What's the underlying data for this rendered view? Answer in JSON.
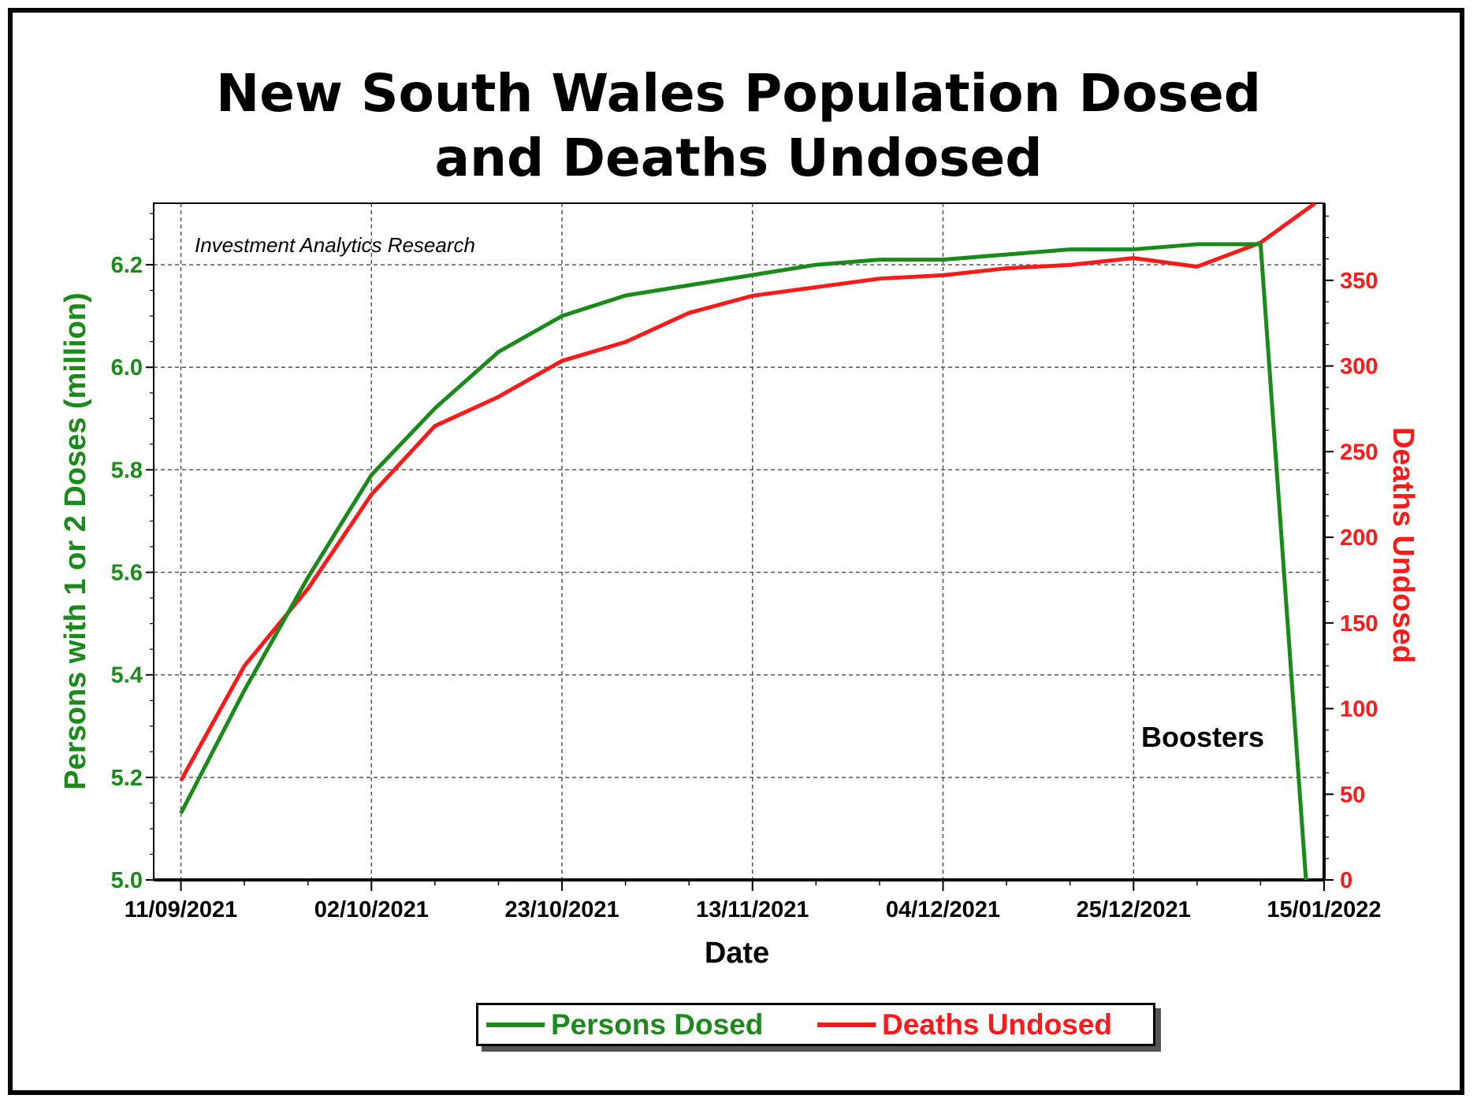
{
  "title_line1": "New South Wales Population Dosed",
  "title_line2": "and Deaths Undosed",
  "colors": {
    "dosed": "#1a8a1a",
    "deaths": "#ff1a1a",
    "grid": "#555555"
  },
  "chart_data": {
    "type": "line",
    "xlabel": "Date",
    "ylabel_left": "Persons with 1 or 2 Doses (million)",
    "ylabel_right": "Deaths Undosed",
    "annotation": "Investment Analytics Research",
    "boosters_label": "Boosters",
    "grid": true,
    "legend_position": "bottom",
    "x_ticks": [
      "11/09/2021",
      "02/10/2021",
      "23/10/2021",
      "13/11/2021",
      "04/12/2021",
      "25/12/2021",
      "15/01/2022"
    ],
    "xlim": [
      "08/09/2021",
      "15/01/2022"
    ],
    "ylim_left": [
      5.0,
      6.32
    ],
    "ylim_right": [
      0,
      395
    ],
    "y_ticks_left": [
      "5.0",
      "5.2",
      "5.4",
      "5.6",
      "5.8",
      "6.0",
      "6.2"
    ],
    "y_ticks_right": [
      "0",
      "50",
      "100",
      "150",
      "200",
      "250",
      "300",
      "350"
    ],
    "series": [
      {
        "name": "Persons Dosed",
        "axis": "left",
        "points": [
          [
            "11/09/2021",
            5.13
          ],
          [
            "18/09/2021",
            5.37
          ],
          [
            "25/09/2021",
            5.59
          ],
          [
            "02/10/2021",
            5.79
          ],
          [
            "09/10/2021",
            5.92
          ],
          [
            "16/10/2021",
            6.03
          ],
          [
            "23/10/2021",
            6.1
          ],
          [
            "30/10/2021",
            6.14
          ],
          [
            "06/11/2021",
            6.16
          ],
          [
            "13/11/2021",
            6.18
          ],
          [
            "20/11/2021",
            6.2
          ],
          [
            "27/11/2021",
            6.21
          ],
          [
            "04/12/2021",
            6.21
          ],
          [
            "11/12/2021",
            6.22
          ],
          [
            "18/12/2021",
            6.23
          ],
          [
            "25/12/2021",
            6.23
          ],
          [
            "01/01/2022",
            6.24
          ],
          [
            "08/01/2022",
            6.24
          ],
          [
            "13/01/2022",
            5.0
          ]
        ]
      },
      {
        "name": "Deaths Undosed",
        "axis": "right",
        "points": [
          [
            "11/09/2021",
            58
          ],
          [
            "18/09/2021",
            125
          ],
          [
            "25/09/2021",
            170
          ],
          [
            "02/10/2021",
            225
          ],
          [
            "09/10/2021",
            265
          ],
          [
            "16/10/2021",
            282
          ],
          [
            "23/10/2021",
            303
          ],
          [
            "30/10/2021",
            314
          ],
          [
            "06/11/2021",
            331
          ],
          [
            "13/11/2021",
            341
          ],
          [
            "20/11/2021",
            346
          ],
          [
            "27/11/2021",
            351
          ],
          [
            "04/12/2021",
            353
          ],
          [
            "11/12/2021",
            357
          ],
          [
            "18/12/2021",
            359
          ],
          [
            "25/12/2021",
            363
          ],
          [
            "01/01/2022",
            358
          ],
          [
            "08/01/2022",
            372
          ],
          [
            "14/01/2022",
            395
          ]
        ]
      }
    ]
  }
}
